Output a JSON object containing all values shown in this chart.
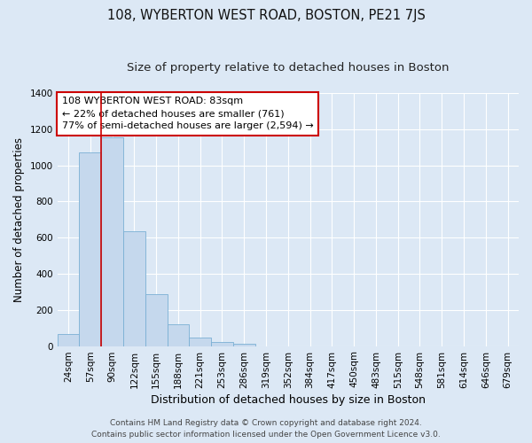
{
  "title": "108, WYBERTON WEST ROAD, BOSTON, PE21 7JS",
  "subtitle": "Size of property relative to detached houses in Boston",
  "xlabel": "Distribution of detached houses by size in Boston",
  "ylabel": "Number of detached properties",
  "bin_labels": [
    "24sqm",
    "57sqm",
    "90sqm",
    "122sqm",
    "155sqm",
    "188sqm",
    "221sqm",
    "253sqm",
    "286sqm",
    "319sqm",
    "352sqm",
    "384sqm",
    "417sqm",
    "450sqm",
    "483sqm",
    "515sqm",
    "548sqm",
    "581sqm",
    "614sqm",
    "646sqm",
    "679sqm"
  ],
  "bar_heights": [
    65,
    1070,
    1155,
    635,
    285,
    120,
    48,
    22,
    15,
    0,
    0,
    0,
    0,
    0,
    0,
    0,
    0,
    0,
    0,
    0,
    0
  ],
  "bar_color": "#c5d8ed",
  "bar_edge_color": "#7ab0d4",
  "vline_color": "#cc0000",
  "annotation_line1": "108 WYBERTON WEST ROAD: 83sqm",
  "annotation_line2": "← 22% of detached houses are smaller (761)",
  "annotation_line3": "77% of semi-detached houses are larger (2,594) →",
  "annotation_box_color": "#ffffff",
  "annotation_box_edge": "#cc0000",
  "ylim": [
    0,
    1400
  ],
  "yticks": [
    0,
    200,
    400,
    600,
    800,
    1000,
    1200,
    1400
  ],
  "footer1": "Contains HM Land Registry data © Crown copyright and database right 2024.",
  "footer2": "Contains public sector information licensed under the Open Government Licence v3.0.",
  "background_color": "#dce8f5",
  "plot_background": "#dce8f5",
  "title_fontsize": 10.5,
  "subtitle_fontsize": 9.5,
  "xlabel_fontsize": 9,
  "ylabel_fontsize": 8.5,
  "tick_fontsize": 7.5,
  "annotation_fontsize": 8,
  "footer_fontsize": 6.5
}
